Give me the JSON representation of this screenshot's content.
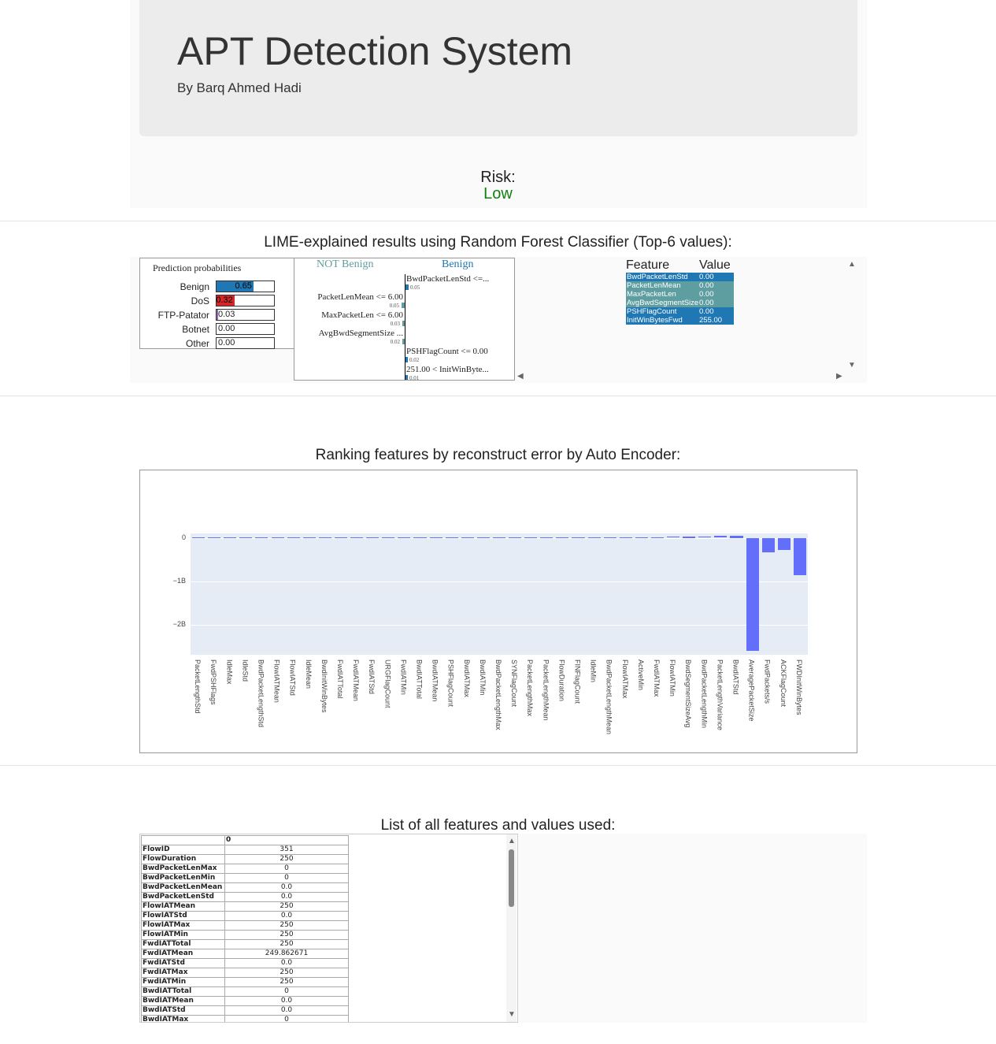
{
  "header": {
    "title": "APT Detection System",
    "subtitle": "By Barq Ahmed Hadi"
  },
  "risk": {
    "label": "Risk:",
    "value": "Low",
    "color": "#118011"
  },
  "lime": {
    "section_title": "LIME-explained results using Random Forest Classifier (Top-6 values):",
    "prediction_title": "Prediction probabilities",
    "probabilities": [
      {
        "name": "Benign",
        "value": "0.65",
        "fraction": 0.65,
        "color": "#1f77b4"
      },
      {
        "name": "DoS",
        "value": "0.32",
        "fraction": 0.32,
        "color": "#d62728"
      },
      {
        "name": "FTP-Patator",
        "value": "0.03",
        "fraction": 0.03,
        "color": "#9467bd"
      },
      {
        "name": "Botnet",
        "value": "0.00",
        "fraction": 0,
        "color": "#8c564b"
      },
      {
        "name": "Other",
        "value": "0.00",
        "fraction": 0,
        "color": "#7f7f7f"
      }
    ],
    "not_label": "NOT Benign",
    "yes_label": "Benign",
    "explanations": [
      {
        "label": "BwdPacketLenStd <=...",
        "weight": "0.05",
        "side": "right",
        "color": "#1f77b4"
      },
      {
        "label": "PacketLenMean <= 6.00",
        "weight": "0.05",
        "side": "left",
        "color": "#5f9ea0"
      },
      {
        "label": "MaxPacketLen <= 6.00",
        "weight": "0.03",
        "side": "left",
        "color": "#5f9ea0"
      },
      {
        "label": "AvgBwdSegmentSize ...",
        "weight": "0.02",
        "side": "left",
        "color": "#5f9ea0"
      },
      {
        "label": "PSHFlagCount <= 0.00",
        "weight": "0.02",
        "side": "right",
        "color": "#1f77b4"
      },
      {
        "label": "251.00 < InitWinByte...",
        "weight": "0.01",
        "side": "right",
        "color": "#1f77b4"
      }
    ],
    "feature_table": {
      "col_feature": "Feature",
      "col_value": "Value",
      "rows": [
        {
          "feature": "BwdPacketLenStd",
          "value": "0.00",
          "color": "#1f77b4"
        },
        {
          "feature": "PacketLenMean",
          "value": "0.00",
          "color": "#5f9ea0"
        },
        {
          "feature": "MaxPacketLen",
          "value": "0.00",
          "color": "#5f9ea0"
        },
        {
          "feature": "AvgBwdSegmentSize",
          "value": "0.00",
          "color": "#5f9ea0"
        },
        {
          "feature": "PSHFlagCount",
          "value": "0.00",
          "color": "#1f77b4"
        },
        {
          "feature": "InitWinBytesFwd",
          "value": "255.00",
          "color": "#1f77b4"
        }
      ]
    }
  },
  "ae": {
    "section_title": "Ranking features by reconstruct error by Auto Encoder:",
    "chart_data": {
      "type": "bar",
      "title": "",
      "xlabel": "",
      "ylabel": "",
      "ylim": [
        -2.7,
        0.1
      ],
      "y_unit_note": "values in billions (B)",
      "yticks": [
        {
          "value": 0,
          "label": "0"
        },
        {
          "value": -1,
          "label": "−1B"
        },
        {
          "value": -2,
          "label": "−2B"
        }
      ],
      "bar_color": "#636efa",
      "categories": [
        "PacketLengthStd",
        "FwdPSHFlags",
        "IdleMax",
        "IdleStd",
        "BwdPacketLengthStd",
        "FlowIATMean",
        "FlowIATStd",
        "IdleMean",
        "BwdInitWinBytes",
        "FwdIATTotal",
        "FwdIATMean",
        "FwdIATStd",
        "URGFlagCount",
        "FwdIATMin",
        "BwdIATTotal",
        "BwdIATMean",
        "PSHFlagCount",
        "BwdIATMax",
        "BwdIATMin",
        "BwdPacketLengthMax",
        "SYNFlagCount",
        "PacketLengthMax",
        "PacketLengthMean",
        "FlowDuration",
        "FINFlagCount",
        "IdleMin",
        "BwdPacketLengthMean",
        "FlowIATMax",
        "ActiveMin",
        "FwdIATMax",
        "FlowIATMin",
        "BwdSegmentSizeAvg",
        "BwdPacketLengthMin",
        "PacketLengthVariance",
        "BwdIATStd",
        "AveragePacketSize",
        "FwdPackets/s",
        "ACKFlagCount",
        "FWDInitWinBytes"
      ],
      "values": [
        0.003,
        0.003,
        0.002,
        0.002,
        0.002,
        0.002,
        0.002,
        0.002,
        0.002,
        0.002,
        0.002,
        0.002,
        0.002,
        0.002,
        0.002,
        0.002,
        0.002,
        0.002,
        0.002,
        0.002,
        0.003,
        0.003,
        0.005,
        0.006,
        0.008,
        0.01,
        0.012,
        0.014,
        0.015,
        0.017,
        0.02,
        0.025,
        0.03,
        0.038,
        0.05,
        -2.6,
        -0.33,
        -0.28,
        -0.87
      ]
    }
  },
  "features_list": {
    "section_title": "List of all features and values used:",
    "column_header": "0",
    "rows": [
      {
        "name": "FlowID",
        "value": "351"
      },
      {
        "name": "FlowDuration",
        "value": "250"
      },
      {
        "name": "BwdPacketLenMax",
        "value": "0"
      },
      {
        "name": "BwdPacketLenMin",
        "value": "0"
      },
      {
        "name": "BwdPacketLenMean",
        "value": "0.0"
      },
      {
        "name": "BwdPacketLenStd",
        "value": "0.0"
      },
      {
        "name": "FlowIATMean",
        "value": "250"
      },
      {
        "name": "FlowIATStd",
        "value": "0.0"
      },
      {
        "name": "FlowIATMax",
        "value": "250"
      },
      {
        "name": "FlowIATMin",
        "value": "250"
      },
      {
        "name": "FwdIATTotal",
        "value": "250"
      },
      {
        "name": "FwdIATMean",
        "value": "249.862671"
      },
      {
        "name": "FwdIATStd",
        "value": "0.0"
      },
      {
        "name": "FwdIATMax",
        "value": "250"
      },
      {
        "name": "FwdIATMin",
        "value": "250"
      },
      {
        "name": "BwdIATTotal",
        "value": "0"
      },
      {
        "name": "BwdIATMean",
        "value": "0.0"
      },
      {
        "name": "BwdIATStd",
        "value": "0.0"
      },
      {
        "name": "BwdIATMax",
        "value": "0"
      }
    ]
  }
}
